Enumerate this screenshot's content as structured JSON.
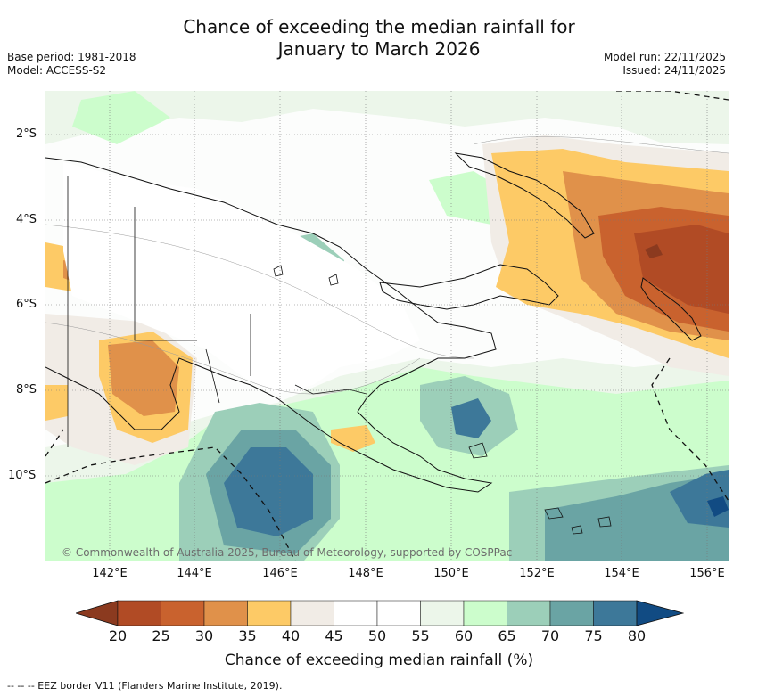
{
  "title_line1": "Chance of exceeding the median rainfall for",
  "title_line2": "January to March 2026",
  "base_period": "Base period: 1981-2018",
  "model": "Model: ACCESS-S2",
  "model_run": "Model run: 22/11/2025",
  "issued": "Issued: 24/11/2025",
  "copyright": "© Commonwealth of Australia 2025, Bureau of Meteorology, supported by COSPPac",
  "lat_labels": [
    "2°S",
    "4°S",
    "6°S",
    "8°S",
    "10°S"
  ],
  "lon_labels": [
    "142°E",
    "144°E",
    "146°E",
    "148°E",
    "150°E",
    "152°E",
    "154°E",
    "156°E"
  ],
  "colorbar": {
    "ticks": [
      "20",
      "25",
      "30",
      "35",
      "40",
      "45",
      "50",
      "55",
      "60",
      "65",
      "70",
      "75",
      "80"
    ],
    "colors": [
      "#8b3a1f",
      "#b14b25",
      "#c9622e",
      "#e0914a",
      "#fdca66",
      "#f1ece6",
      "#ffffff",
      "#ffffff",
      "#ecf6ea",
      "#ccfdcc",
      "#9ccfb9",
      "#6aa4a4",
      "#3d7899",
      "#114b83"
    ],
    "label": "Chance of exceeding median rainfall (%)"
  },
  "footer": "--  --  -- EEZ border V11 (Flanders Marine Institute, 2019)."
}
